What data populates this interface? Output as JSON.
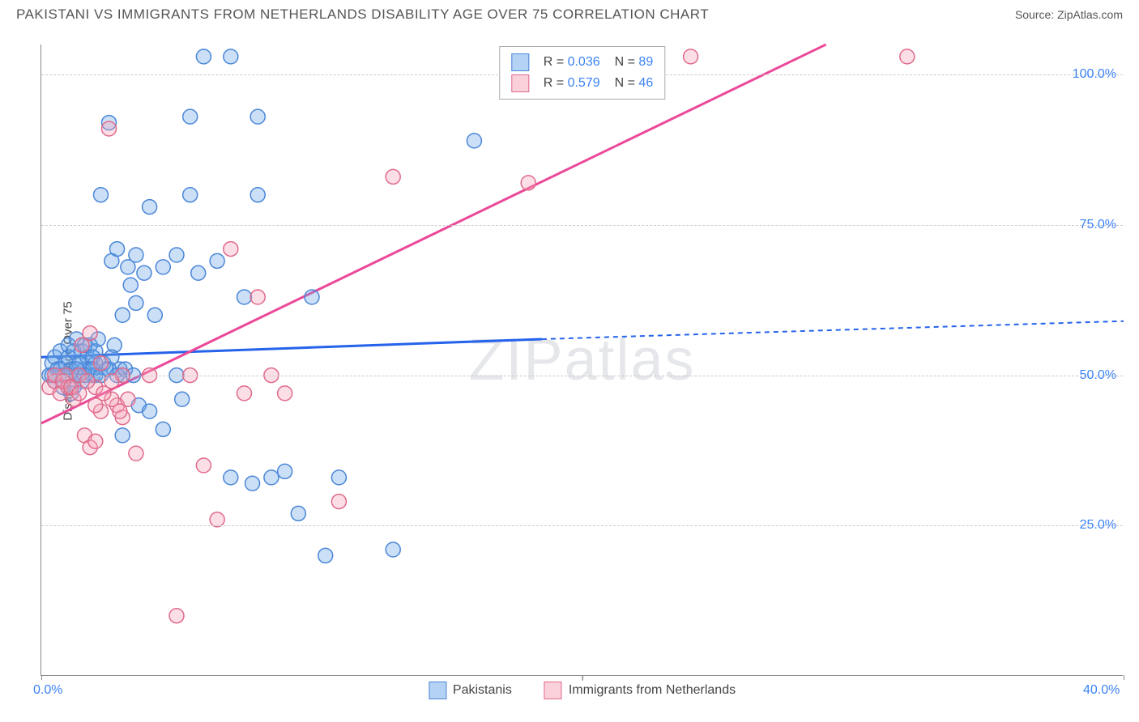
{
  "title": "PAKISTANI VS IMMIGRANTS FROM NETHERLANDS DISABILITY AGE OVER 75 CORRELATION CHART",
  "source": "Source: ZipAtlas.com",
  "watermark": "ZIPatlas",
  "ylabel": "Disability Age Over 75",
  "chart": {
    "type": "scatter",
    "xlim": [
      0,
      40
    ],
    "ylim": [
      0,
      105
    ],
    "x_ticks": [
      0,
      20,
      40
    ],
    "x_tick_labels": [
      "0.0%",
      "",
      "40.0%"
    ],
    "y_ticks": [
      25,
      50,
      75,
      100
    ],
    "y_tick_labels": [
      "25.0%",
      "50.0%",
      "75.0%",
      "100.0%"
    ],
    "background_color": "#ffffff",
    "grid_color": "#cccccc",
    "marker_radius": 9,
    "marker_fill_opacity": 0.35,
    "marker_stroke_width": 1.5,
    "series": [
      {
        "name": "Pakistanis",
        "color": "#6aa6e8",
        "stroke": "#4a86d8",
        "R": "0.036",
        "N": "89",
        "trend": {
          "x1": 0,
          "y1": 53,
          "x2": 18.5,
          "y2": 56,
          "extend_x2": 40,
          "extend_y2": 59,
          "solid_color": "#2563eb",
          "width": 3
        },
        "points": [
          [
            0.3,
            50
          ],
          [
            0.4,
            52
          ],
          [
            0.5,
            53
          ],
          [
            0.6,
            51
          ],
          [
            0.7,
            54
          ],
          [
            0.8,
            50
          ],
          [
            0.9,
            52
          ],
          [
            1.0,
            53
          ],
          [
            1.0,
            55
          ],
          [
            1.1,
            51
          ],
          [
            1.2,
            48
          ],
          [
            1.3,
            56
          ],
          [
            1.4,
            50
          ],
          [
            1.5,
            52
          ],
          [
            1.5,
            54
          ],
          [
            1.6,
            51
          ],
          [
            1.7,
            53
          ],
          [
            1.8,
            55
          ],
          [
            1.9,
            50
          ],
          [
            2.0,
            52
          ],
          [
            2.0,
            54
          ],
          [
            2.1,
            56
          ],
          [
            2.2,
            80
          ],
          [
            2.5,
            92
          ],
          [
            2.6,
            69
          ],
          [
            2.8,
            71
          ],
          [
            3.0,
            50
          ],
          [
            3.0,
            40
          ],
          [
            3.0,
            60
          ],
          [
            3.2,
            68
          ],
          [
            3.3,
            65
          ],
          [
            3.5,
            70
          ],
          [
            3.5,
            62
          ],
          [
            3.6,
            45
          ],
          [
            3.8,
            67
          ],
          [
            4.0,
            44
          ],
          [
            4.0,
            78
          ],
          [
            4.2,
            60
          ],
          [
            4.5,
            68
          ],
          [
            4.5,
            41
          ],
          [
            5.0,
            70
          ],
          [
            5.0,
            50
          ],
          [
            5.2,
            46
          ],
          [
            5.5,
            80
          ],
          [
            5.5,
            93
          ],
          [
            5.8,
            67
          ],
          [
            6.0,
            103
          ],
          [
            6.5,
            69
          ],
          [
            7.0,
            33
          ],
          [
            7.5,
            63
          ],
          [
            7.8,
            32
          ],
          [
            8.0,
            80
          ],
          [
            8.0,
            93
          ],
          [
            8.5,
            33
          ],
          [
            9.0,
            34
          ],
          [
            9.5,
            27
          ],
          [
            10.0,
            63
          ],
          [
            10.5,
            20
          ],
          [
            11.0,
            33
          ],
          [
            13.0,
            21
          ],
          [
            16.0,
            89
          ],
          [
            7.0,
            103
          ],
          [
            1.2,
            54
          ],
          [
            1.4,
            52
          ],
          [
            1.6,
            55
          ],
          [
            1.9,
            53
          ],
          [
            2.4,
            51
          ],
          [
            2.7,
            55
          ],
          [
            0.5,
            49
          ],
          [
            0.8,
            48
          ],
          [
            1.1,
            47
          ],
          [
            1.3,
            50
          ],
          [
            1.5,
            49
          ],
          [
            1.8,
            51
          ],
          [
            2.0,
            50
          ],
          [
            2.3,
            52
          ],
          [
            2.6,
            53
          ],
          [
            2.9,
            51
          ],
          [
            0.4,
            50
          ],
          [
            0.7,
            51
          ],
          [
            1.0,
            50
          ],
          [
            1.3,
            51
          ],
          [
            1.6,
            50
          ],
          [
            1.9,
            51
          ],
          [
            2.2,
            50
          ],
          [
            2.5,
            51
          ],
          [
            2.8,
            50
          ],
          [
            3.1,
            51
          ],
          [
            3.4,
            50
          ]
        ]
      },
      {
        "name": "Immigrants from Netherlands",
        "color": "#f5a3b8",
        "stroke": "#e06a8a",
        "R": "0.579",
        "N": "46",
        "trend": {
          "x1": 0,
          "y1": 42,
          "x2": 29,
          "y2": 105,
          "solid_color": "#ec4899",
          "width": 3
        },
        "points": [
          [
            0.3,
            48
          ],
          [
            0.5,
            49
          ],
          [
            0.7,
            47
          ],
          [
            0.9,
            50
          ],
          [
            1.0,
            48
          ],
          [
            1.2,
            46
          ],
          [
            1.4,
            50
          ],
          [
            1.6,
            40
          ],
          [
            1.8,
            38
          ],
          [
            2.0,
            39
          ],
          [
            2.0,
            48
          ],
          [
            2.2,
            52
          ],
          [
            2.5,
            91
          ],
          [
            2.8,
            45
          ],
          [
            3.0,
            50
          ],
          [
            3.5,
            37
          ],
          [
            4.0,
            50
          ],
          [
            5.0,
            10
          ],
          [
            5.5,
            50
          ],
          [
            6.0,
            35
          ],
          [
            6.5,
            26
          ],
          [
            7.0,
            71
          ],
          [
            7.5,
            47
          ],
          [
            8.0,
            63
          ],
          [
            8.5,
            50
          ],
          [
            9.0,
            47
          ],
          [
            11.0,
            29
          ],
          [
            13.0,
            83
          ],
          [
            18.0,
            82
          ],
          [
            24.0,
            103
          ],
          [
            32.0,
            103
          ],
          [
            1.5,
            55
          ],
          [
            1.8,
            57
          ],
          [
            2.2,
            44
          ],
          [
            2.6,
            46
          ],
          [
            3.0,
            43
          ],
          [
            0.5,
            50
          ],
          [
            0.8,
            49
          ],
          [
            1.1,
            48
          ],
          [
            1.4,
            47
          ],
          [
            1.7,
            49
          ],
          [
            2.0,
            45
          ],
          [
            2.3,
            47
          ],
          [
            2.6,
            49
          ],
          [
            2.9,
            44
          ],
          [
            3.2,
            46
          ]
        ]
      }
    ]
  },
  "legend_bottom": {
    "items": [
      "Pakistanis",
      "Immigrants from Netherlands"
    ]
  }
}
